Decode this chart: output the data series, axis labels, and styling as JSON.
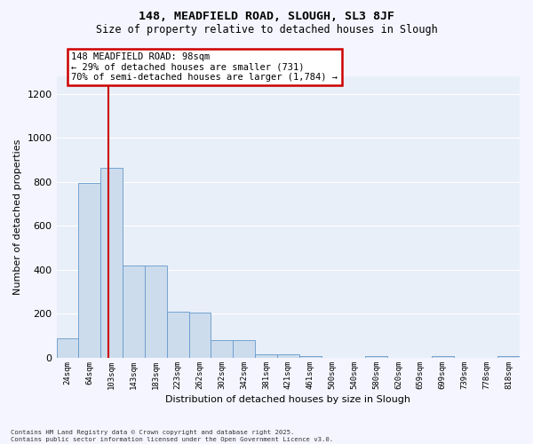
{
  "title1": "148, MEADFIELD ROAD, SLOUGH, SL3 8JF",
  "title2": "Size of property relative to detached houses in Slough",
  "xlabel": "Distribution of detached houses by size in Slough",
  "ylabel": "Number of detached properties",
  "bar_labels": [
    "24sqm",
    "64sqm",
    "103sqm",
    "143sqm",
    "183sqm",
    "223sqm",
    "262sqm",
    "302sqm",
    "342sqm",
    "381sqm",
    "421sqm",
    "461sqm",
    "500sqm",
    "540sqm",
    "580sqm",
    "620sqm",
    "659sqm",
    "699sqm",
    "739sqm",
    "778sqm",
    "818sqm"
  ],
  "bar_values": [
    90,
    795,
    865,
    420,
    420,
    210,
    205,
    80,
    80,
    18,
    18,
    10,
    0,
    0,
    10,
    0,
    0,
    8,
    0,
    0,
    10
  ],
  "bar_color": "#ccdcec",
  "bar_edge_color": "#6699cc",
  "vline_x": 1.87,
  "vline_color": "#cc0000",
  "annotation_text": "148 MEADFIELD ROAD: 98sqm\n← 29% of detached houses are smaller (731)\n70% of semi-detached houses are larger (1,784) →",
  "annotation_box_facecolor": "#ffffff",
  "annotation_box_edgecolor": "#cc0000",
  "ylim": [
    0,
    1280
  ],
  "yticks": [
    0,
    200,
    400,
    600,
    800,
    1000,
    1200
  ],
  "axes_bg_color": "#e8eff8",
  "fig_bg_color": "#f5f5ff",
  "grid_color": "#ffffff",
  "footer1": "Contains HM Land Registry data © Crown copyright and database right 2025.",
  "footer2": "Contains public sector information licensed under the Open Government Licence v3.0."
}
